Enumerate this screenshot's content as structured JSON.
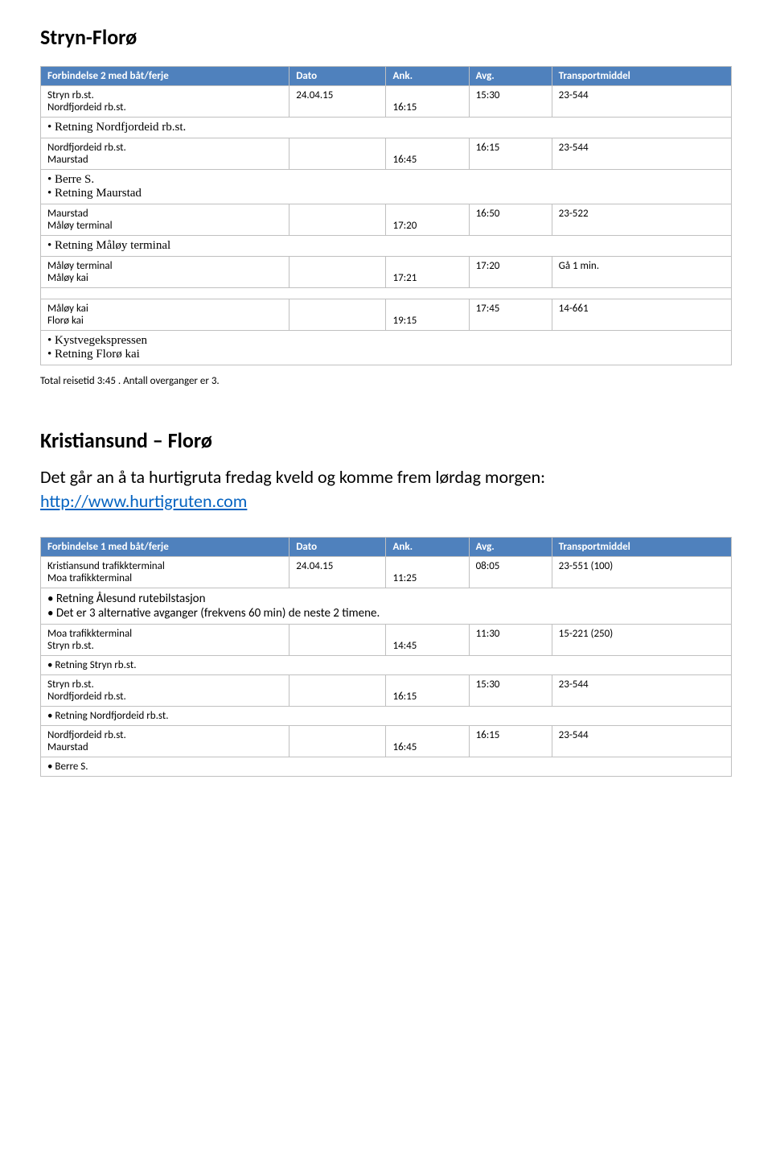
{
  "section1": {
    "title": "Stryn-Florø",
    "header": {
      "route": "Forbindelse 2 med båt/ferje",
      "date": "Dato",
      "ank": "Ank.",
      "avg": "Avg.",
      "trans": "Transportmiddel"
    },
    "r1": {
      "from": "Stryn rb.st.",
      "to": "Nordfjordeid rb.st.",
      "date": "24.04.15",
      "ank": "16:15",
      "avg": "15:30",
      "trans": "23-544"
    },
    "n1": "• Retning Nordfjordeid rb.st.",
    "r2": {
      "from": "Nordfjordeid rb.st.",
      "to": "Maurstad",
      "ank": "16:45",
      "avg": "16:15",
      "trans": "23-544"
    },
    "n2a": "• Berre S.",
    "n2b": "• Retning Maurstad",
    "r3": {
      "from": "Maurstad",
      "to": "Måløy terminal",
      "ank": "17:20",
      "avg": "16:50",
      "trans": "23-522"
    },
    "n3": "• Retning Måløy terminal",
    "r4": {
      "from": "Måløy terminal",
      "to": "Måløy kai",
      "ank": "17:21",
      "avg": "17:20",
      "trans": "Gå 1 min."
    },
    "r5": {
      "from": "Måløy kai",
      "to": "Florø kai",
      "ank": "19:15",
      "avg": "17:45",
      "trans": "14-661"
    },
    "n5a": "• Kystvegekspressen",
    "n5b": "• Retning Florø kai",
    "summary": "Total reisetid 3:45 . Antall overganger er 3."
  },
  "section2": {
    "title": "Kristiansund – Florø",
    "intro_pre": "Det går an å ta hurtigruta fredag kveld og komme frem lørdag morgen: ",
    "intro_link": "http://www.hurtigruten.com",
    "header": {
      "route": "Forbindelse 1 med båt/ferje",
      "date": "Dato",
      "ank": "Ank.",
      "avg": "Avg.",
      "trans": "Transportmiddel"
    },
    "r1": {
      "from": "Kristiansund trafikkterminal",
      "to": "Moa trafikkterminal",
      "date": "24.04.15",
      "ank": "11:25",
      "avg": "08:05",
      "trans": "23-551 (100)"
    },
    "n1a": "• Retning Ålesund rutebilstasjon",
    "n1b": "• Det er 3 alternative avganger (frekvens 60 min) de neste 2 timene.",
    "r2": {
      "from": "Moa trafikkterminal",
      "to": "Stryn rb.st.",
      "ank": "14:45",
      "avg": "11:30",
      "trans": "15-221 (250)"
    },
    "n2": "• Retning Stryn rb.st.",
    "r3": {
      "from": "Stryn rb.st.",
      "to": "Nordfjordeid rb.st.",
      "ank": "16:15",
      "avg": "15:30",
      "trans": "23-544"
    },
    "n3": "• Retning Nordfjordeid rb.st.",
    "r4": {
      "from": "Nordfjordeid rb.st.",
      "to": "Maurstad",
      "ank": "16:45",
      "avg": "16:15",
      "trans": "23-544"
    },
    "n4": "• Berre S."
  }
}
